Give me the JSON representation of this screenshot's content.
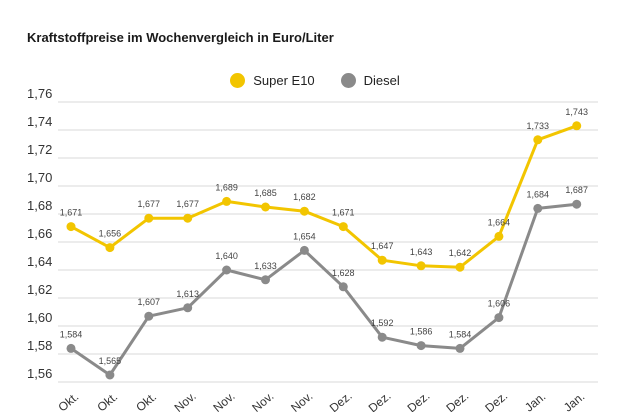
{
  "chart_data": {
    "type": "line",
    "title": "Kraftstoffpreise im Wochenvergleich in Euro/Liter",
    "categories": [
      "Okt.",
      "Okt.",
      "Okt.",
      "Nov.",
      "Nov.",
      "Nov.",
      "Nov.",
      "Dez.",
      "Dez.",
      "Dez.",
      "Dez.",
      "Dez.",
      "Jan.",
      "Jan."
    ],
    "series": [
      {
        "name": "Super E10",
        "color": "#f2c500",
        "values": [
          1.671,
          1.656,
          1.677,
          1.677,
          1.689,
          1.685,
          1.682,
          1.671,
          1.647,
          1.643,
          1.642,
          1.664,
          1.733,
          1.743
        ],
        "labels": [
          "1,671",
          "1,656",
          "1,677",
          "1,677",
          "1,689",
          "1,685",
          "1,682",
          "1,671",
          "1,647",
          "1,643",
          "1,642",
          "1,664",
          "1,733",
          "1,743"
        ]
      },
      {
        "name": "Diesel",
        "color": "#8a8a8a",
        "values": [
          1.584,
          1.565,
          1.607,
          1.613,
          1.64,
          1.633,
          1.654,
          1.628,
          1.592,
          1.586,
          1.584,
          1.606,
          1.684,
          1.687
        ],
        "labels": [
          "1,584",
          "1,565",
          "1,607",
          "1,613",
          "1,640",
          "1,633",
          "1,654",
          "1,628",
          "1,592",
          "1,586",
          "1,584",
          "1,606",
          "1,684",
          "1,687"
        ]
      }
    ],
    "yticks": [
      1.56,
      1.58,
      1.6,
      1.62,
      1.64,
      1.66,
      1.68,
      1.7,
      1.72,
      1.74,
      1.76
    ],
    "ytick_labels": [
      "1,56",
      "1,58",
      "1,60",
      "1,62",
      "1,64",
      "1,66",
      "1,68",
      "1,70",
      "1,72",
      "1,74",
      "1,76"
    ],
    "ylim": [
      1.56,
      1.76
    ],
    "grid": true,
    "legend_position": "top-center"
  }
}
